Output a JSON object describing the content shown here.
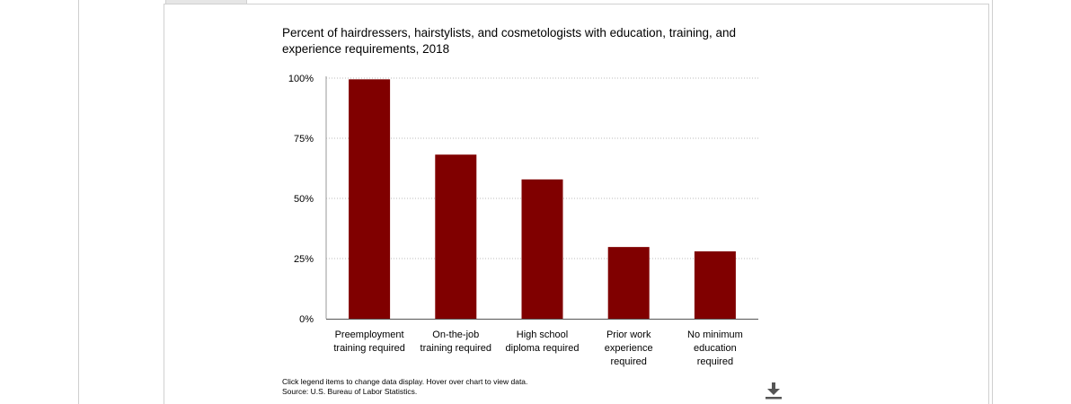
{
  "chart_data": {
    "type": "bar",
    "title": "Percent of hairdressers, hairstylists, and cosmetologists with education, training, and experience requirements, 2018",
    "categories": [
      [
        "Preemployment",
        "training required"
      ],
      [
        "On-the-job",
        "training required"
      ],
      [
        "High school",
        "diploma required"
      ],
      [
        "Prior work",
        "experience",
        "required"
      ],
      [
        "No minimum",
        "education",
        "required"
      ]
    ],
    "values": [
      99.5,
      68.2,
      57.9,
      29.8,
      28.0
    ],
    "yticks": [
      "0%",
      "25%",
      "50%",
      "75%",
      "100%"
    ],
    "ylim": [
      0,
      100
    ],
    "bar_color": "#800000",
    "grid": true,
    "legend": "none"
  },
  "footer": {
    "note": "Click legend items to change data display. Hover over chart to view data.",
    "source": "Source: U.S. Bureau of Labor Statistics."
  },
  "download_icon": "download-icon"
}
